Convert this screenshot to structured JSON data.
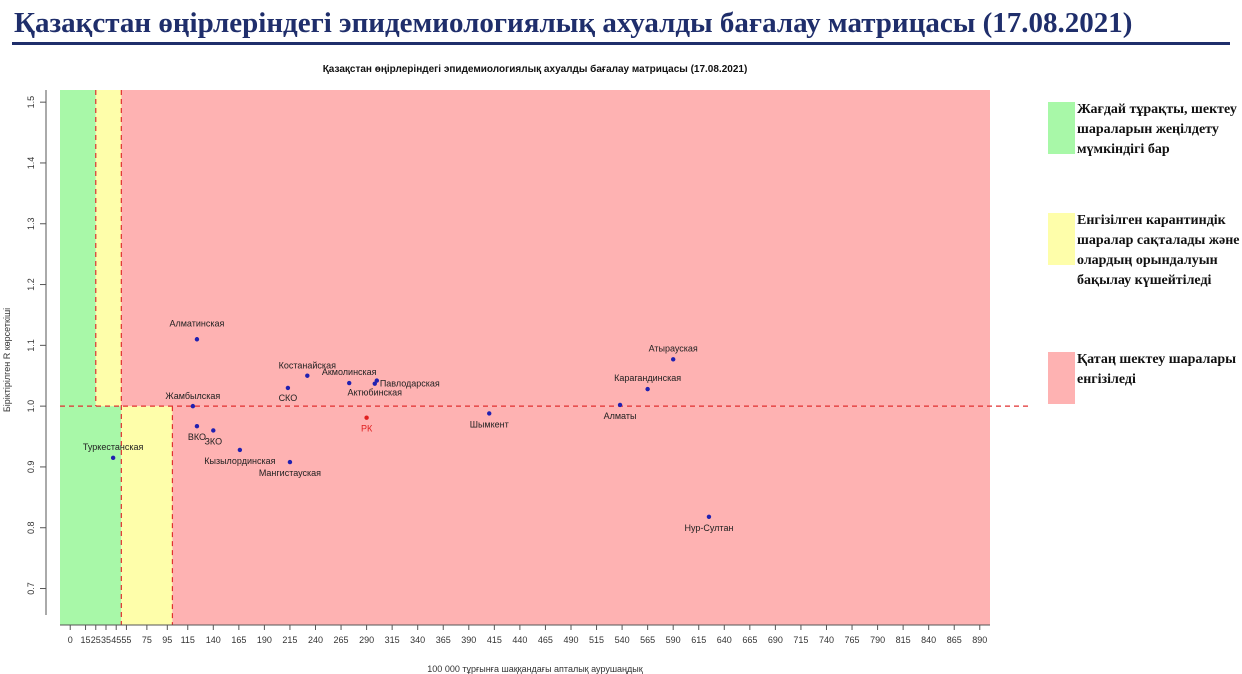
{
  "page_title": "Қазақстан өңірлеріндегі эпидемиологиялық ахуалды бағалау матрицасы  (17.08.2021)",
  "legend": [
    {
      "label": "Жағдай тұрақты, шектеу шараларын жеңілдету мүмкіндігі бар",
      "color": "#a8f8a8"
    },
    {
      "label": "Енгізілген карантиндік шаралар сақталады және олардың орындалуын бақылау күшейтіледі",
      "color": "#fefeaa"
    },
    {
      "label": "Қатаң шектеу шаралары енгізіледі",
      "color": "#feb2b2"
    }
  ],
  "chart_data": {
    "type": "scatter",
    "title": "Қазақстан өңірлеріндегі эпидемиологиялық ахуалды бағалау матрицасы  (17.08.2021)",
    "xlabel": "100 000 тұрғынға шаққандағы апталық аурушаңдық",
    "ylabel": "Біріктірілген R көрсеткіші",
    "xlim": [
      -10,
      900
    ],
    "ylim": [
      0.64,
      1.52
    ],
    "x_ticks": [
      0,
      15,
      25,
      35,
      45,
      55,
      75,
      95,
      115,
      140,
      165,
      190,
      215,
      240,
      265,
      290,
      315,
      340,
      365,
      390,
      415,
      440,
      465,
      490,
      515,
      540,
      565,
      590,
      615,
      640,
      665,
      690,
      715,
      740,
      765,
      790,
      815,
      840,
      865,
      890
    ],
    "y_ticks": [
      0.7,
      0.8,
      0.9,
      1.0,
      1.1,
      1.2,
      1.3,
      1.4,
      1.5
    ],
    "grid": false,
    "reference_lines": {
      "x": [
        25,
        50,
        100
      ],
      "y": 1.0
    },
    "zones": [
      {
        "name": "green",
        "x": [
          -10,
          50
        ],
        "y": [
          0.64,
          1.0
        ],
        "color": "#a8f8a8"
      },
      {
        "name": "green",
        "x": [
          -10,
          25
        ],
        "y": [
          1.0,
          1.52
        ],
        "color": "#a8f8a8"
      },
      {
        "name": "yellow",
        "x": [
          25,
          50
        ],
        "y": [
          1.0,
          1.52
        ],
        "color": "#fefeaa"
      },
      {
        "name": "yellow",
        "x": [
          50,
          100
        ],
        "y": [
          0.64,
          1.0
        ],
        "color": "#fefeaa"
      },
      {
        "name": "red",
        "x": [
          50,
          900
        ],
        "y": [
          1.0,
          1.52
        ],
        "color": "#feb2b2"
      },
      {
        "name": "red",
        "x": [
          100,
          900
        ],
        "y": [
          0.64,
          1.0
        ],
        "color": "#feb2b2"
      }
    ],
    "points": [
      {
        "label": "Алматинская",
        "x": 124,
        "y": 1.11,
        "dx": 0,
        "dy": -13,
        "anchor": "middle"
      },
      {
        "label": "Костанайская",
        "x": 232,
        "y": 1.05,
        "dx": 0,
        "dy": -7,
        "anchor": "middle"
      },
      {
        "label": "Акмолинская",
        "x": 273,
        "y": 1.038,
        "dx": 0,
        "dy": -8,
        "anchor": "middle"
      },
      {
        "label": "Павлодарская",
        "x": 300,
        "y": 1.042,
        "dx": 3,
        "dy": 6,
        "anchor": "start"
      },
      {
        "label": "Актюбинская",
        "x": 298,
        "y": 1.037,
        "dx": 0,
        "dy": 12,
        "anchor": "middle"
      },
      {
        "label": "СКО",
        "x": 213,
        "y": 1.03,
        "dx": 0,
        "dy": 13,
        "anchor": "middle"
      },
      {
        "label": "Жамбылская",
        "x": 120,
        "y": 1.0,
        "dx": 0,
        "dy": -7,
        "anchor": "middle"
      },
      {
        "label": "ВКО",
        "x": 124,
        "y": 0.967,
        "dx": 0,
        "dy": 14,
        "anchor": "middle"
      },
      {
        "label": "ЗКО",
        "x": 140,
        "y": 0.96,
        "dx": 0,
        "dy": 14,
        "anchor": "middle"
      },
      {
        "label": "Кызылординская",
        "x": 166,
        "y": 0.928,
        "dx": 0,
        "dy": 14,
        "anchor": "middle"
      },
      {
        "label": "Мангистауская",
        "x": 215,
        "y": 0.908,
        "dx": 0,
        "dy": 14,
        "anchor": "middle"
      },
      {
        "label": "Туркестанская",
        "x": 42,
        "y": 0.915,
        "dx": 0,
        "dy": -8,
        "anchor": "middle"
      },
      {
        "label": "РК",
        "x": 290,
        "y": 0.981,
        "dx": 0,
        "dy": 14,
        "anchor": "middle",
        "color": "#e02020"
      },
      {
        "label": "Шымкент",
        "x": 410,
        "y": 0.988,
        "dx": 0,
        "dy": 14,
        "anchor": "middle"
      },
      {
        "label": "Атырауская",
        "x": 590,
        "y": 1.077,
        "dx": 0,
        "dy": -8,
        "anchor": "middle"
      },
      {
        "label": "Карагандинская",
        "x": 565,
        "y": 1.028,
        "dx": 0,
        "dy": -8,
        "anchor": "middle"
      },
      {
        "label": "Алматы",
        "x": 538,
        "y": 1.002,
        "dx": 0,
        "dy": 14,
        "anchor": "middle"
      },
      {
        "label": "Нур-Султан",
        "x": 625,
        "y": 0.818,
        "dx": 0,
        "dy": 14,
        "anchor": "middle"
      }
    ]
  }
}
